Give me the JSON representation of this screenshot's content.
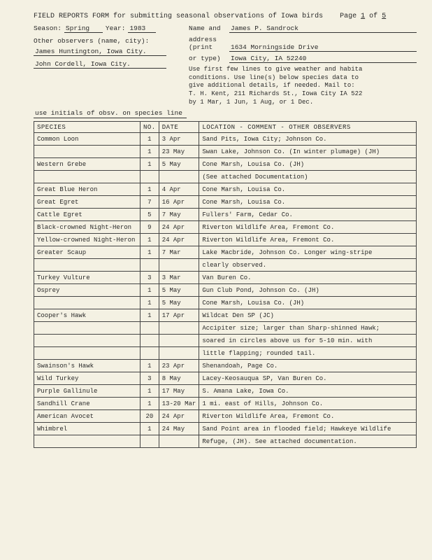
{
  "title": "FIELD REPORTS FORM for submitting seasonal observations of Iowa birds",
  "page_label": "Page",
  "page_cur": "1",
  "page_of": "of",
  "page_tot": "5",
  "season_lbl": "Season:",
  "season": "Spring",
  "year_lbl": "Year:",
  "year": "1983",
  "name_lbl": "Name and",
  "name": "James P. Sandrock",
  "other_lbl": "Other observers (name, city):",
  "addr_lbl1": "address",
  "addr_lbl2": "(print",
  "addr_lbl3": "or type)",
  "addr1": "1634 Morningside Drive",
  "addr2": "Iowa City, IA  52240",
  "obs1": "James Huntington, Iowa City.",
  "obs2": "John Cordell, Iowa City.",
  "inst1": "Use first few lines to give weather and habita",
  "inst2": "conditions. Use line(s) below species data to",
  "inst3": "give additional details, if needed. Mail to:",
  "inst4": "T. H. Kent, 211 Richards St., Iowa City IA 522",
  "inst5": "by 1 Mar, 1 Jun, 1 Aug, or 1 Dec.",
  "initials_note": "use initials of obsv. on species line",
  "h_species": "SPECIES",
  "h_no": "NO.",
  "h_date": "DATE",
  "h_loc": "LOCATION - COMMENT - OTHER OBSERVERS",
  "rows": [
    {
      "chk": "✓",
      "sp": "Common Loon",
      "no": "1",
      "dt": "3 Apr",
      "loc": "Sand Pits, Iowa City; Johnson Co."
    },
    {
      "chk": "✓",
      "sp": "",
      "no": "1",
      "dt": "23 May",
      "loc": "Swan Lake, Johnson Co. (In winter plumage) (JH)"
    },
    {
      "chk": "✓",
      "sp": "Western Grebe",
      "no": "1",
      "dt": "5 May",
      "loc": "Cone Marsh, Louisa Co. (JH)"
    },
    {
      "chk": "",
      "sp": "",
      "no": "",
      "dt": "",
      "loc": "(See attached Documentation)"
    },
    {
      "chk": "",
      "sp": "Great Blue Heron",
      "no": "1",
      "dt": "4 Apr",
      "loc": "Cone Marsh, Louisa Co."
    },
    {
      "chk": "✓",
      "sp": "Great Egret",
      "no": "7",
      "dt": "16 Apr",
      "loc": "Cone Marsh, Louisa Co."
    },
    {
      "chk": "✓",
      "sp": "Cattle Egret",
      "no": "5",
      "dt": "7 May",
      "loc": "Fullers' Farm, Cedar Co."
    },
    {
      "chk": "✓",
      "sp": "Black-crowned Night-Heron",
      "no": "9",
      "dt": "24 Apr",
      "loc": "Riverton Wildlife Area, Fremont Co."
    },
    {
      "chk": "✓",
      "sp": "Yellow-crowned Night-Heron",
      "no": "1",
      "dt": "24 Apr",
      "loc": "Riverton Wildlife Area, Fremont Co."
    },
    {
      "chk": "✓",
      "sp": "Greater Scaup",
      "no": "1",
      "dt": "7 Mar",
      "loc": "Lake Macbride, Johnson Co. Longer wing-stripe"
    },
    {
      "chk": "",
      "sp": "",
      "no": "",
      "dt": "",
      "loc": "clearly observed."
    },
    {
      "chk": "✓",
      "sp": "Turkey Vulture",
      "no": "3",
      "dt": "3 Mar",
      "loc": "Van Buren Co."
    },
    {
      "chk": "✓",
      "sp": "Osprey",
      "no": "1",
      "dt": "5 May",
      "loc": "Gun Club Pond, Johnson Co. (JH)"
    },
    {
      "chk": "✓",
      "sp": "",
      "no": "1",
      "dt": "5 May",
      "loc": "Cone Marsh, Louisa Co. (JH)"
    },
    {
      "chk": "✓",
      "sp": "Cooper's Hawk",
      "no": "1",
      "dt": "17 Apr",
      "loc": "Wildcat Den SP (JC)"
    },
    {
      "chk": "",
      "sp": "",
      "no": "",
      "dt": "",
      "loc": "Accipiter size; larger than Sharp-shinned Hawk;"
    },
    {
      "chk": "",
      "sp": "",
      "no": "",
      "dt": "",
      "loc": "soared in circles above us for 5-10 min. with"
    },
    {
      "chk": "",
      "sp": "",
      "no": "",
      "dt": "",
      "loc": "little flapping; rounded tail."
    },
    {
      "chk": "✓",
      "sp": "Swainson's Hawk",
      "no": "1",
      "dt": "23 Apr",
      "loc": "Shenandoah, Page Co."
    },
    {
      "chk": "✓",
      "sp": "Wild Turkey",
      "no": "3",
      "dt": "8 May",
      "loc": "Lacey-Keosauqua SP, Van Buren Co."
    },
    {
      "chk": "",
      "sp": "Purple Gallinule",
      "no": "1",
      "dt": "17 May",
      "loc": "S. Amana Lake, Iowa Co."
    },
    {
      "chk": "•",
      "sp": "Sandhill Crane",
      "no": "1",
      "dt": "13-20 Mar",
      "loc": "1 mi. east of Hills, Johnson Co."
    },
    {
      "chk": "✓",
      "sp": "American Avocet",
      "no": "20",
      "dt": "24 Apr",
      "loc": "Riverton Wildlife Area, Fremont Co."
    },
    {
      "chk": "✓",
      "sp": "Whimbrel",
      "no": "1",
      "dt": "24 May",
      "loc": "Sand Point area in flooded field; Hawkeye Wildlife"
    },
    {
      "chk": "",
      "sp": "",
      "no": "",
      "dt": "",
      "loc": "Refuge, (JH). See attached documentation."
    }
  ]
}
